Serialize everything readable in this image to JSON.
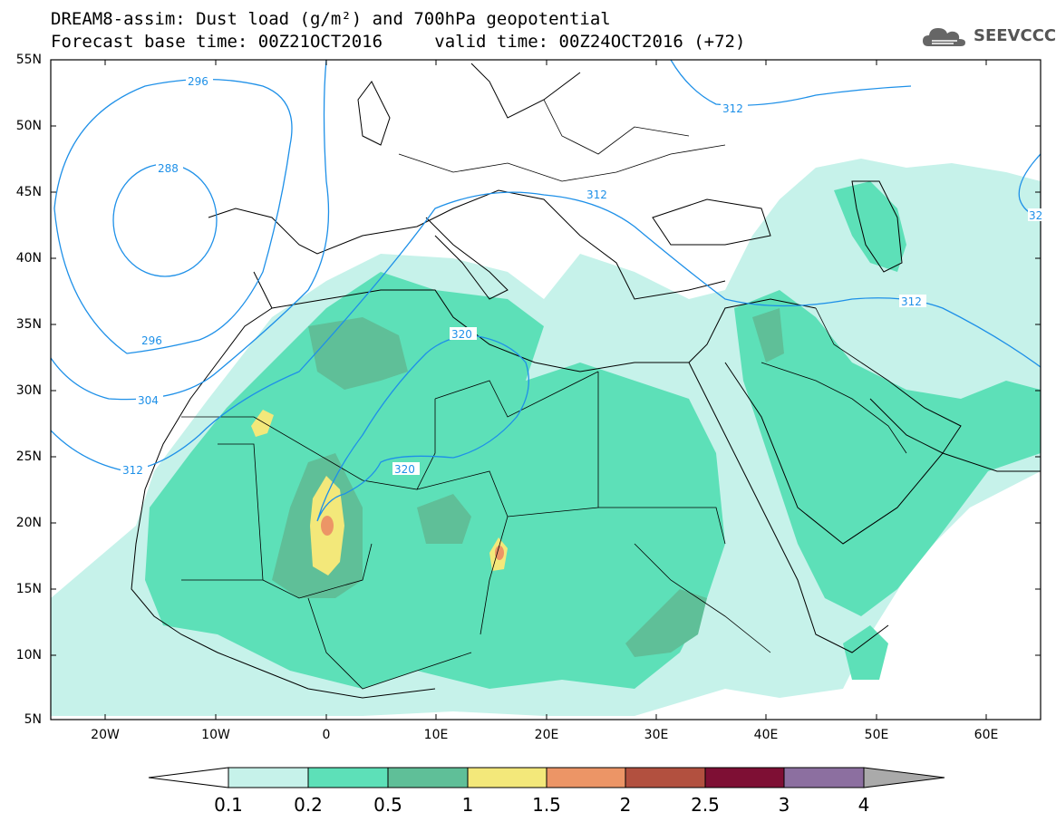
{
  "title": {
    "line1": "DREAM8-assim: Dust load (g/m²) and 700hPa geopotential",
    "line2_base": "Forecast base time: 00Z21OCT2016",
    "line2_valid": "valid time: 00Z24OCT2016 (+72)"
  },
  "logo": {
    "text": "SEEVCCC",
    "icon": "cloud-icon"
  },
  "map": {
    "lat_labels": [
      "55N",
      "50N",
      "45N",
      "40N",
      "35N",
      "30N",
      "25N",
      "20N",
      "15N",
      "10N",
      "5N"
    ],
    "lon_labels": [
      "20W",
      "10W",
      "0",
      "10E",
      "20E",
      "30E",
      "40E",
      "50E",
      "60E"
    ],
    "contour_labels": [
      "296",
      "288",
      "296",
      "304",
      "312",
      "320",
      "320",
      "312",
      "312",
      "312",
      "32"
    ],
    "contour_color": "#1e90e8"
  },
  "colorbar": {
    "labels": [
      "0.1",
      "0.2",
      "0.5",
      "1",
      "1.5",
      "2",
      "2.5",
      "3",
      "4"
    ],
    "colors": [
      "#c6f2ea",
      "#5de0b8",
      "#5fbf98",
      "#f3e87a",
      "#ec9566",
      "#b2503f",
      "#7e0f34",
      "#8c6fa0",
      "#aaaaaa"
    ]
  }
}
